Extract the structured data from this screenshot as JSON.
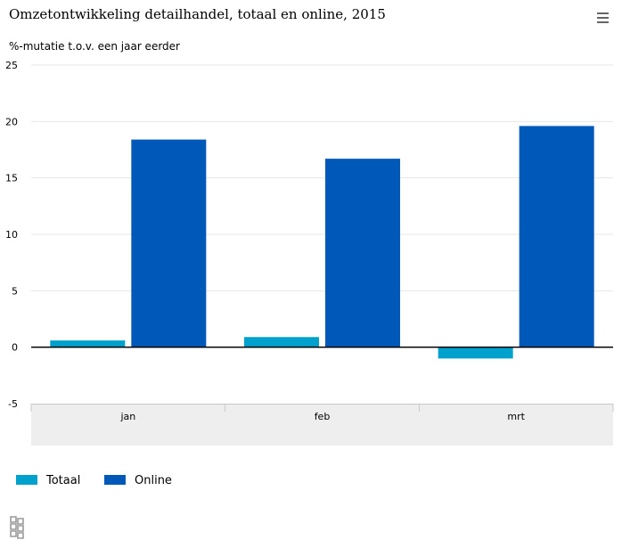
{
  "header": {
    "title": "Omzetontwikkeling detailhandel, totaal en online, 2015",
    "menu_icon": "hamburger-menu-icon"
  },
  "colors": {
    "totaal": "#00a1cd",
    "online": "#0058b8",
    "axis_band": "#eeeeee"
  },
  "chart_data": {
    "type": "bar",
    "title": "Omzetontwikkeling detailhandel, totaal en online, 2015",
    "ylabel": "%-mutatie t.o.v. een jaar eerder",
    "xlabel": "",
    "categories": [
      "jan",
      "feb",
      "mrt"
    ],
    "series": [
      {
        "name": "Totaal",
        "values": [
          0.6,
          0.9,
          -1.0
        ]
      },
      {
        "name": "Online",
        "values": [
          18.4,
          16.7,
          19.6
        ]
      }
    ],
    "ylim": [
      -5,
      25
    ],
    "yticks": [
      -5,
      0,
      5,
      10,
      15,
      20,
      25
    ],
    "grid": true,
    "legend": "bottom-left"
  },
  "logo_icon": "cbs-logo-icon"
}
